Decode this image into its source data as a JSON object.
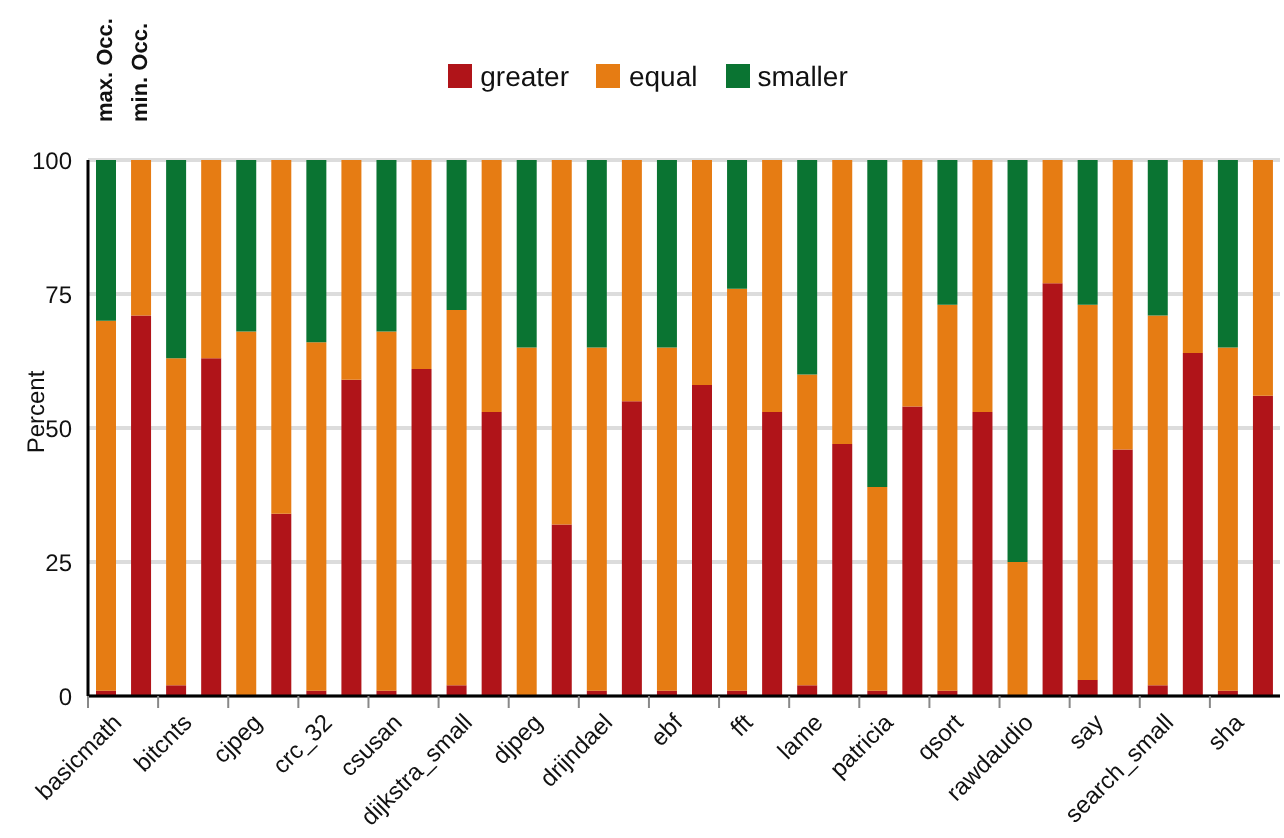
{
  "chart_data": {
    "type": "bar",
    "stacked": true,
    "ylabel": "Percent",
    "categories": [
      "basicmath",
      null,
      "bitcnts",
      null,
      "cjpeg",
      null,
      "crc_32",
      null,
      "csusan",
      null,
      "dijkstra_small",
      null,
      "djpeg",
      null,
      "drijndael",
      null,
      "ebf",
      null,
      "fft",
      null,
      "lame",
      null,
      "patricia",
      null,
      "qsort",
      null,
      "rawdaudio",
      null,
      "say",
      null,
      "search_small",
      null,
      "sha",
      null
    ],
    "series": [
      {
        "name": "greater",
        "color": "#b01419",
        "values": [
          1,
          71,
          2,
          63,
          0,
          34,
          1,
          59,
          1,
          61,
          2,
          53,
          0,
          32,
          1,
          55,
          1,
          58,
          1,
          53,
          2,
          47,
          1,
          54,
          1,
          53,
          0,
          77,
          3,
          46,
          2,
          64,
          1,
          56
        ]
      },
      {
        "name": "equal",
        "color": "#e67c13",
        "values": [
          69,
          29,
          61,
          37,
          68,
          66,
          65,
          41,
          67,
          39,
          70,
          47,
          65,
          68,
          64,
          45,
          64,
          42,
          75,
          47,
          58,
          53,
          38,
          46,
          72,
          47,
          25,
          23,
          70,
          54,
          69,
          36,
          64,
          44
        ]
      },
      {
        "name": "smaller",
        "color": "#0a7432",
        "values": [
          30,
          0,
          37,
          0,
          32,
          0,
          34,
          0,
          32,
          0,
          28,
          0,
          35,
          0,
          35,
          0,
          35,
          0,
          24,
          0,
          40,
          0,
          61,
          0,
          27,
          0,
          75,
          0,
          27,
          0,
          29,
          0,
          35,
          0
        ]
      }
    ],
    "annotations": [
      "max. Occ.",
      "min. Occ."
    ],
    "ylim": [
      0,
      100
    ],
    "yticks": [
      0,
      25,
      50,
      75,
      100
    ],
    "grid": "y",
    "legend": "top"
  }
}
